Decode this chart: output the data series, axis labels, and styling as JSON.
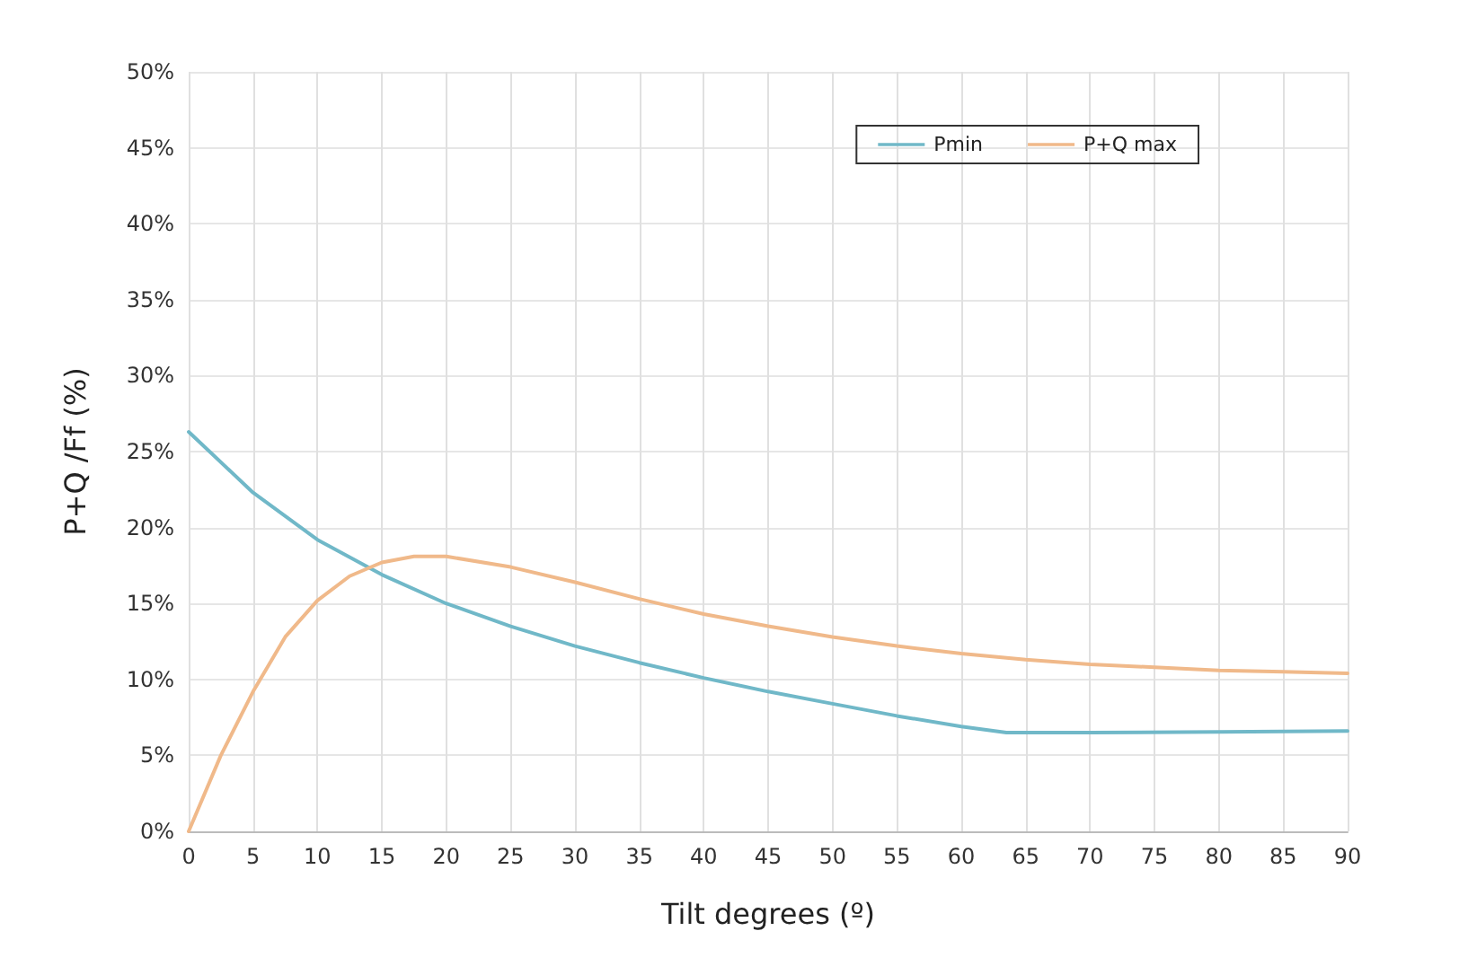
{
  "chart_data": {
    "type": "line",
    "xlabel": "Tilt degrees (º)",
    "ylabel": "P+Q /Ff (%)",
    "series": [
      {
        "name": "Pmin",
        "color": "#70b8c8",
        "x": [
          0,
          5,
          10,
          15,
          20,
          25,
          30,
          35,
          40,
          45,
          50,
          55,
          60,
          63.5,
          70,
          80,
          90
        ],
        "values": [
          26.3,
          22.3,
          19.2,
          16.9,
          15.0,
          13.5,
          12.2,
          11.1,
          10.1,
          9.2,
          8.4,
          7.6,
          6.9,
          6.5,
          6.5,
          6.55,
          6.6
        ]
      },
      {
        "name": "P+Q max",
        "color": "#f0b98a",
        "x": [
          0,
          2.5,
          5,
          7.5,
          10,
          12.5,
          15,
          17.5,
          20,
          25,
          30,
          35,
          40,
          45,
          50,
          55,
          60,
          65,
          70,
          75,
          80,
          85,
          90
        ],
        "values": [
          0,
          5,
          9.2,
          12.8,
          15.2,
          16.8,
          17.7,
          18.1,
          18.1,
          17.4,
          16.4,
          15.3,
          14.3,
          13.5,
          12.8,
          12.2,
          11.7,
          11.3,
          11.0,
          10.8,
          10.6,
          10.5,
          10.4
        ]
      }
    ],
    "xlim": [
      0,
      90
    ],
    "xticks": [
      0,
      5,
      10,
      15,
      20,
      25,
      30,
      35,
      40,
      45,
      50,
      55,
      60,
      65,
      70,
      75,
      80,
      85,
      90
    ],
    "ylim": [
      0,
      50
    ],
    "yticks": [
      {
        "value": 0,
        "label": "0%"
      },
      {
        "value": 5,
        "label": "5%"
      },
      {
        "value": 10,
        "label": "10%"
      },
      {
        "value": 15,
        "label": "15%"
      },
      {
        "value": 20,
        "label": "20%"
      },
      {
        "value": 25,
        "label": "25%"
      },
      {
        "value": 30,
        "label": "30%"
      },
      {
        "value": 35,
        "label": "35%"
      },
      {
        "value": 40,
        "label": "40%"
      },
      {
        "value": 45,
        "label": "45%"
      },
      {
        "value": 50,
        "label": "50%"
      }
    ],
    "grid": true,
    "legend": "top right",
    "marker": "none",
    "line_style": "solid"
  }
}
